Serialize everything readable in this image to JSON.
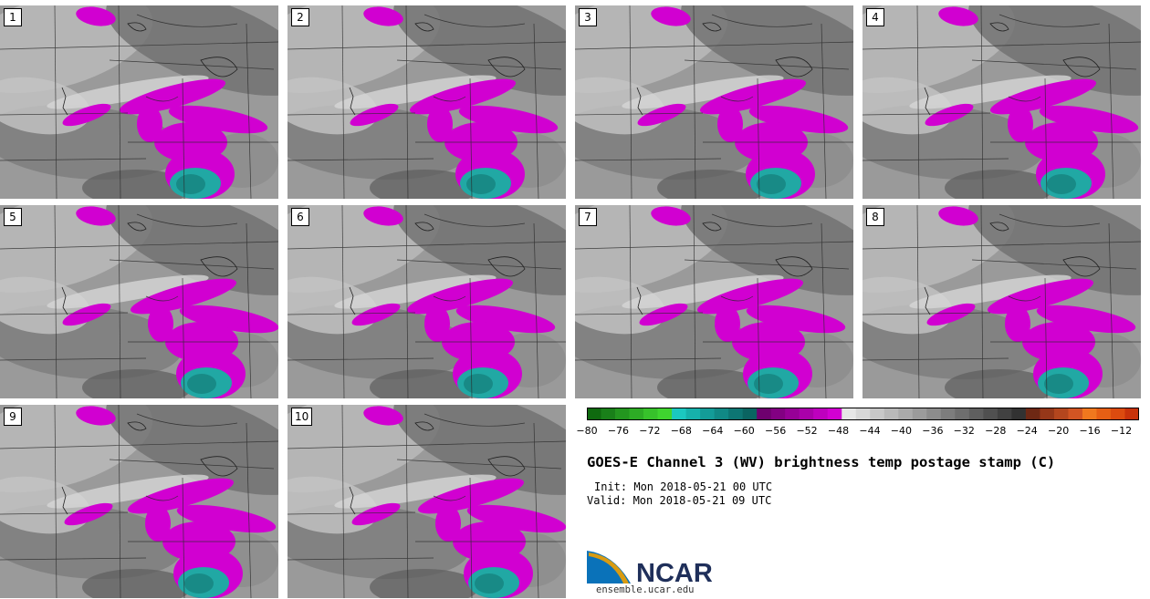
{
  "panels": [
    {
      "label": "1"
    },
    {
      "label": "2"
    },
    {
      "label": "3"
    },
    {
      "label": "4"
    },
    {
      "label": "5"
    },
    {
      "label": "6"
    },
    {
      "label": "7"
    },
    {
      "label": "8"
    },
    {
      "label": "9"
    },
    {
      "label": "10"
    }
  ],
  "colorbar": {
    "colors": [
      "#0f6a0f",
      "#198019",
      "#23961f",
      "#2dac25",
      "#37c22b",
      "#3fd52f",
      "#1bc8c0",
      "#16b1ab",
      "#139c98",
      "#108985",
      "#0d7673",
      "#0a6461",
      "#6e006e",
      "#820082",
      "#960096",
      "#aa00aa",
      "#be00be",
      "#d200d2",
      "#e6e6e6",
      "#d7d7d7",
      "#c8c8c8",
      "#b9b9b9",
      "#aaaaaa",
      "#9b9b9b",
      "#8c8c8c",
      "#7d7d7d",
      "#6e6e6e",
      "#5f5f5f",
      "#505050",
      "#414141",
      "#323232",
      "#6e2814",
      "#963719",
      "#b4461e",
      "#d25523",
      "#f0781e",
      "#e65f14",
      "#dc4b0f",
      "#c8320a"
    ],
    "ticks": [
      "−80",
      "−76",
      "−72",
      "−68",
      "−64",
      "−60",
      "−56",
      "−52",
      "−48",
      "−44",
      "−40",
      "−36",
      "−32",
      "−28",
      "−24",
      "−20",
      "−16",
      "−12"
    ]
  },
  "title": "GOES-E Channel 3 (WV) brightness temp postage stamp (C)",
  "init": "Init: Mon 2018-05-21 00 UTC",
  "valid": "Valid: Mon 2018-05-21 09 UTC",
  "logo": {
    "text": "NCAR",
    "url": "ensemble.ucar.edu"
  }
}
